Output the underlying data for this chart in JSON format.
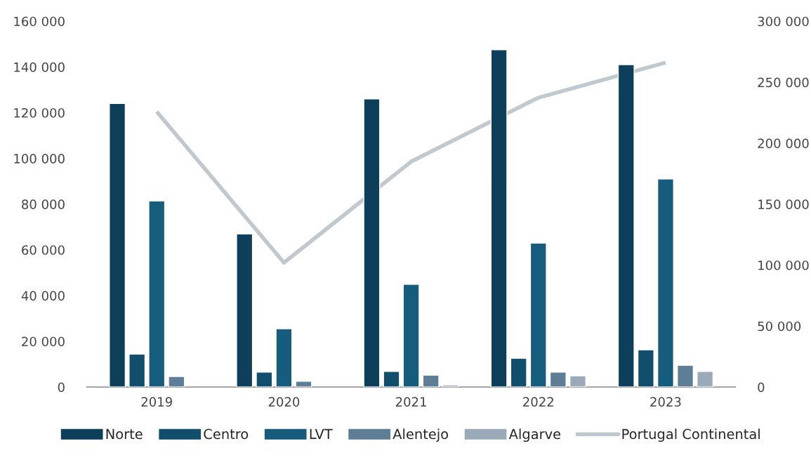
{
  "chart_data": {
    "type": "bar",
    "categories": [
      "2019",
      "2020",
      "2021",
      "2022",
      "2023"
    ],
    "series": [
      {
        "name": "Norte",
        "color": "#0d3f5a",
        "values": [
          124000,
          67000,
          126000,
          147500,
          141000
        ]
      },
      {
        "name": "Centro",
        "color": "#114e6c",
        "values": [
          14400,
          6500,
          6800,
          12600,
          16300
        ]
      },
      {
        "name": "LVT",
        "color": "#155c7d",
        "values": [
          81400,
          25500,
          44900,
          63000,
          91000
        ]
      },
      {
        "name": "Alentejo",
        "color": "#5e7d96",
        "values": [
          4600,
          2500,
          5200,
          6500,
          9500
        ]
      },
      {
        "name": "Algarve",
        "color": "#9aaab8",
        "values": [
          null,
          null,
          900,
          4900,
          6800
        ]
      },
      {
        "name": "Portugal Continental",
        "type": "line",
        "axis": "y2",
        "color": "#c0c8d0",
        "values": [
          225800,
          102000,
          184900,
          237300,
          266100
        ]
      }
    ],
    "ylim": [
      0,
      160000
    ],
    "yticks": [
      0,
      {
        "value": 20000,
        "label": "20 000"
      },
      {
        "value": 40000,
        "label": "40 000"
      },
      {
        "value": 60000,
        "label": "60 000"
      },
      {
        "value": 80000,
        "label": "80 000"
      },
      {
        "value": 100000,
        "label": "100 000"
      },
      {
        "value": 120000,
        "label": "120 000"
      },
      {
        "value": 140000,
        "label": "140 000"
      },
      {
        "value": 160000,
        "label": "160 000"
      }
    ],
    "y2lim": [
      0,
      300000
    ],
    "y2ticks": [
      0,
      {
        "value": 50000,
        "label": "50 000"
      },
      {
        "value": 100000,
        "label": "100 000"
      },
      {
        "value": 150000,
        "label": "150 000"
      },
      {
        "value": 200000,
        "label": "200 000"
      },
      {
        "value": 250000,
        "label": "250 000"
      },
      {
        "value": 300000,
        "label": "300 000"
      }
    ],
    "grid": false,
    "legend": "bottom",
    "marker": "none",
    "line_style": "solid"
  }
}
